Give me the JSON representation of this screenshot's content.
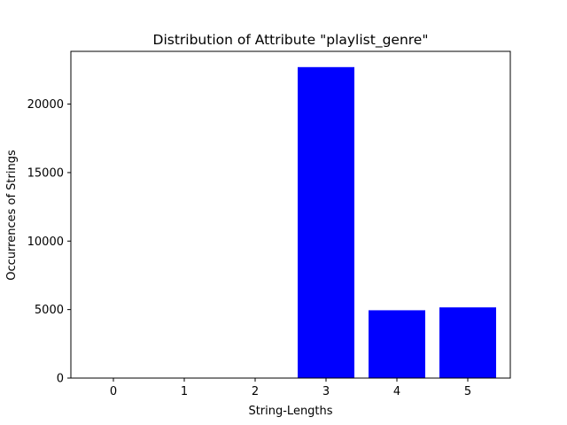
{
  "chart_data": {
    "type": "bar",
    "title": "Distribution of Attribute \"playlist_genre\"",
    "xlabel": "String-Lengths",
    "ylabel": "Occurrences of Strings",
    "categories": [
      "0",
      "1",
      "2",
      "3",
      "4",
      "5"
    ],
    "values": [
      0,
      0,
      0,
      22700,
      4950,
      5160
    ],
    "ylim": [
      0,
      23850
    ],
    "yticks": [
      0,
      5000,
      10000,
      15000,
      20000
    ],
    "ytick_labels": [
      "0",
      "5000",
      "10000",
      "15000",
      "20000"
    ],
    "bar_color": "#0000ff",
    "grid": false,
    "legend": "none"
  }
}
